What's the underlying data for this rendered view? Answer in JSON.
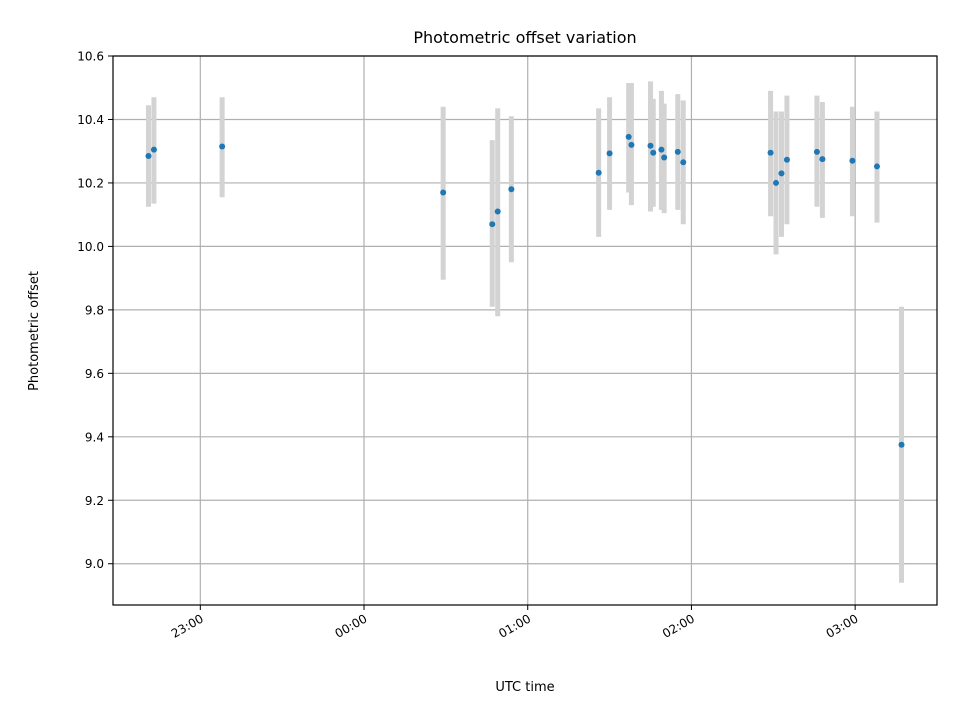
{
  "chart_data": {
    "type": "scatter",
    "title": "Photometric offset variation",
    "xlabel": "UTC time",
    "ylabel": "Photometric offset",
    "xlim": [
      "22:28",
      "03:30"
    ],
    "ylim": [
      8.87,
      10.6
    ],
    "x_ticks": [
      "23:00",
      "00:00",
      "01:00",
      "02:00",
      "03:00"
    ],
    "y_ticks": [
      9.0,
      9.2,
      9.4,
      9.6,
      9.8,
      10.0,
      10.2,
      10.4,
      10.6
    ],
    "grid": true,
    "colors": {
      "point": "#1f77b4",
      "errorbar": "#d3d3d3",
      "grid": "#b0b0b0"
    },
    "points": [
      {
        "x": "22:41",
        "y": 10.285,
        "ylo": 10.125,
        "yhi": 10.445
      },
      {
        "x": "22:43",
        "y": 10.305,
        "ylo": 10.135,
        "yhi": 10.47
      },
      {
        "x": "23:08",
        "y": 10.315,
        "ylo": 10.155,
        "yhi": 10.47
      },
      {
        "x": "00:29",
        "y": 10.17,
        "ylo": 9.895,
        "yhi": 10.44
      },
      {
        "x": "00:47",
        "y": 10.07,
        "ylo": 9.81,
        "yhi": 10.335
      },
      {
        "x": "00:49",
        "y": 10.11,
        "ylo": 9.78,
        "yhi": 10.435
      },
      {
        "x": "00:54",
        "y": 10.18,
        "ylo": 9.95,
        "yhi": 10.41
      },
      {
        "x": "01:26",
        "y": 10.232,
        "ylo": 10.03,
        "yhi": 10.435
      },
      {
        "x": "01:30",
        "y": 10.293,
        "ylo": 10.115,
        "yhi": 10.47
      },
      {
        "x": "01:37",
        "y": 10.345,
        "ylo": 10.17,
        "yhi": 10.515
      },
      {
        "x": "01:38",
        "y": 10.32,
        "ylo": 10.13,
        "yhi": 10.515
      },
      {
        "x": "01:45",
        "y": 10.317,
        "ylo": 10.11,
        "yhi": 10.52
      },
      {
        "x": "01:46",
        "y": 10.295,
        "ylo": 10.125,
        "yhi": 10.465
      },
      {
        "x": "01:49",
        "y": 10.305,
        "ylo": 10.115,
        "yhi": 10.49
      },
      {
        "x": "01:50",
        "y": 10.28,
        "ylo": 10.105,
        "yhi": 10.45
      },
      {
        "x": "01:55",
        "y": 10.298,
        "ylo": 10.115,
        "yhi": 10.48
      },
      {
        "x": "01:57",
        "y": 10.265,
        "ylo": 10.07,
        "yhi": 10.46
      },
      {
        "x": "02:29",
        "y": 10.295,
        "ylo": 10.095,
        "yhi": 10.49
      },
      {
        "x": "02:31",
        "y": 10.2,
        "ylo": 9.975,
        "yhi": 10.425
      },
      {
        "x": "02:33",
        "y": 10.23,
        "ylo": 10.03,
        "yhi": 10.425
      },
      {
        "x": "02:35",
        "y": 10.273,
        "ylo": 10.07,
        "yhi": 10.475
      },
      {
        "x": "02:46",
        "y": 10.298,
        "ylo": 10.125,
        "yhi": 10.475
      },
      {
        "x": "02:48",
        "y": 10.275,
        "ylo": 10.09,
        "yhi": 10.455
      },
      {
        "x": "02:59",
        "y": 10.27,
        "ylo": 10.095,
        "yhi": 10.44
      },
      {
        "x": "03:08",
        "y": 10.252,
        "ylo": 10.075,
        "yhi": 10.425
      },
      {
        "x": "03:17",
        "y": 9.375,
        "ylo": 8.94,
        "yhi": 9.81
      }
    ]
  }
}
